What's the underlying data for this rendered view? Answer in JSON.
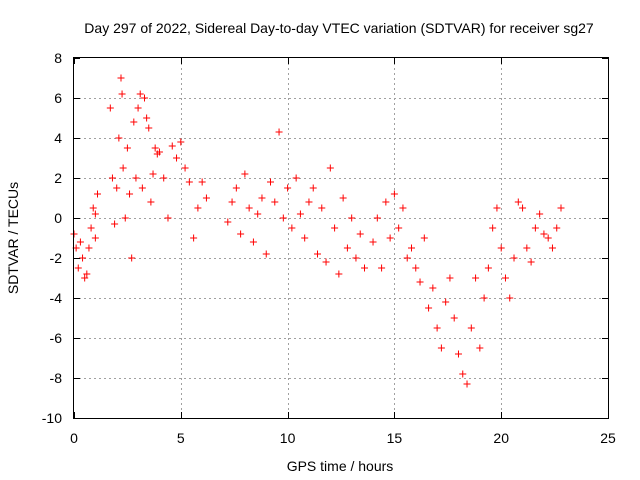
{
  "chart_data": {
    "type": "scatter",
    "title": "Day 297 of 2022, Sidereal Day-to-day VTEC variation (SDTVAR) for receiver sg27",
    "xlabel": "GPS time / hours",
    "ylabel": "SDTVAR / TECUs",
    "xlim": [
      0,
      25
    ],
    "ylim": [
      -10,
      8
    ],
    "xticks": [
      0,
      5,
      10,
      15,
      20,
      25
    ],
    "yticks": [
      -10,
      -8,
      -6,
      -4,
      -2,
      0,
      2,
      4,
      6,
      8
    ],
    "marker": "+",
    "color": "#ff0000",
    "grid": true,
    "series": [
      {
        "name": "sg27",
        "x": [
          0.0,
          0.1,
          0.2,
          0.3,
          0.4,
          0.5,
          0.6,
          0.7,
          0.8,
          0.9,
          1.0,
          1.0,
          1.1,
          1.7,
          1.8,
          1.9,
          2.0,
          2.1,
          2.2,
          2.25,
          2.3,
          2.4,
          2.5,
          2.6,
          2.7,
          2.8,
          2.9,
          3.0,
          3.1,
          3.2,
          3.3,
          3.4,
          3.5,
          3.6,
          3.7,
          3.8,
          3.9,
          4.0,
          4.2,
          4.4,
          4.6,
          4.8,
          5.0,
          5.2,
          5.4,
          5.6,
          5.8,
          6.0,
          6.2,
          7.2,
          7.4,
          7.6,
          7.8,
          8.0,
          8.2,
          8.4,
          8.6,
          8.8,
          9.0,
          9.2,
          9.4,
          9.6,
          9.8,
          10.0,
          10.2,
          10.4,
          10.6,
          10.8,
          11.0,
          11.2,
          11.4,
          11.6,
          11.8,
          12.0,
          12.2,
          12.4,
          12.6,
          12.8,
          13.0,
          13.2,
          13.4,
          13.6,
          14.0,
          14.2,
          14.4,
          14.6,
          14.8,
          15.0,
          15.2,
          15.4,
          15.6,
          15.8,
          16.0,
          16.2,
          16.4,
          16.6,
          16.8,
          17.0,
          17.2,
          17.4,
          17.6,
          17.8,
          18.0,
          18.2,
          18.4,
          18.6,
          18.8,
          19.0,
          19.2,
          19.4,
          19.6,
          19.8,
          20.0,
          20.2,
          20.4,
          20.6,
          20.8,
          21.0,
          21.2,
          21.4,
          21.6,
          21.8,
          22.0,
          22.2,
          22.4,
          22.6,
          22.8
        ],
        "y": [
          -0.8,
          -1.5,
          -2.5,
          -1.2,
          -2.0,
          -3.0,
          -2.8,
          -1.5,
          -0.5,
          0.5,
          0.2,
          -1.0,
          1.2,
          5.5,
          2.0,
          -0.3,
          1.5,
          4.0,
          7.0,
          6.2,
          2.5,
          0.0,
          3.5,
          1.2,
          -2.0,
          4.8,
          2.0,
          5.5,
          6.2,
          1.5,
          6.0,
          5.0,
          4.5,
          0.8,
          2.2,
          3.5,
          3.2,
          3.3,
          2.0,
          0.0,
          3.6,
          3.0,
          3.8,
          2.5,
          1.8,
          -1.0,
          0.5,
          1.8,
          1.0,
          -0.2,
          0.8,
          1.5,
          -0.8,
          2.2,
          0.5,
          -1.2,
          0.2,
          1.0,
          -1.8,
          1.8,
          0.8,
          4.3,
          0.0,
          1.5,
          -0.5,
          2.0,
          0.2,
          -1.0,
          0.8,
          1.5,
          -1.8,
          0.5,
          -2.2,
          2.5,
          -0.5,
          -2.8,
          1.0,
          -1.5,
          0.0,
          -2.0,
          -0.8,
          -2.5,
          -1.2,
          0.0,
          -2.5,
          0.8,
          -1.0,
          1.2,
          -0.5,
          0.5,
          -2.0,
          -1.5,
          -2.5,
          -3.2,
          -1.0,
          -4.5,
          -3.5,
          -5.5,
          -6.5,
          -4.2,
          -3.0,
          -5.0,
          -6.8,
          -7.8,
          -8.3,
          -5.5,
          -3.0,
          -6.5,
          -4.0,
          -2.5,
          -0.5,
          0.5,
          -1.5,
          -3.0,
          -4.0,
          -2.0,
          0.8,
          0.5,
          -1.5,
          -2.2,
          -0.5,
          0.2,
          -0.8,
          -1.0,
          -1.5,
          -0.5,
          0.5
        ]
      }
    ]
  }
}
